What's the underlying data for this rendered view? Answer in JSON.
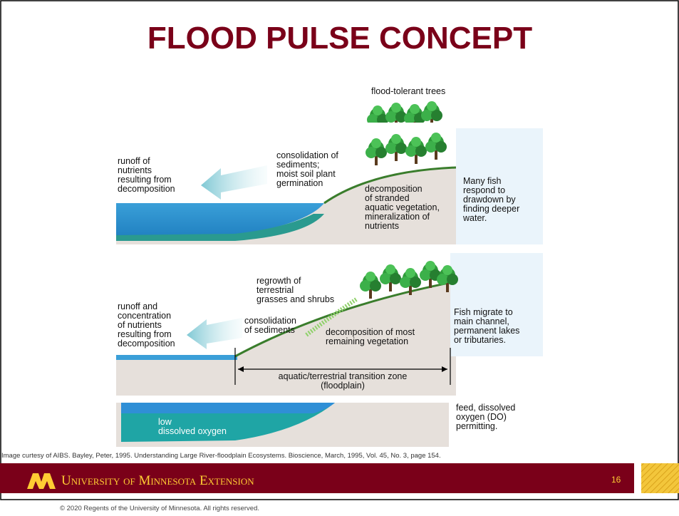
{
  "title": "FLOOD PULSE CONCEPT",
  "diagram": {
    "top_label": "flood-tolerant trees",
    "panel1": {
      "runoff": [
        "runoff of",
        "nutrients",
        "resulting from",
        "decomposition"
      ],
      "consolidation": [
        "consolidation of",
        "sediments;",
        "moist soil plant",
        "germination"
      ],
      "decomposition": [
        "decomposition",
        "of stranded",
        "aquatic vegetation,",
        "mineralization of",
        "nutrients"
      ],
      "fish": [
        "Many fish",
        "respond to",
        "drawdown by",
        "finding deeper",
        "water."
      ]
    },
    "panel2": {
      "regrowth": [
        "regrowth of",
        "terrestrial",
        "grasses and shrubs"
      ],
      "runoff": [
        "runoff and",
        "concentration",
        "of nutrients",
        "resulting from",
        "decomposition"
      ],
      "consolidation": [
        "consolidation",
        "of sediments"
      ],
      "decomposition": [
        "decomposition of most",
        "remaining vegetation"
      ],
      "fish": [
        "Fish migrate to",
        "main channel,",
        "permanent lakes",
        "or tributaries."
      ],
      "zone": [
        "aquatic/terrestrial transition zone",
        "(floodplain)"
      ]
    },
    "panel3": {
      "oxygen": [
        "low",
        "dissolved oxygen"
      ],
      "fish": [
        "feed, dissolved",
        "oxygen (DO)",
        "permitting."
      ]
    }
  },
  "caption": "Image curtesy of AIBS. Bayley, Peter, 1995. Understanding Large River-floodplain Ecosystems. Bioscience, March, 1995, Vol. 45, No. 3, page 154.",
  "footer": {
    "brand": "University of Minnesota Extension",
    "page": "16",
    "copyright": "© 2020 Regents of the University of Minnesota. All rights reserved."
  }
}
